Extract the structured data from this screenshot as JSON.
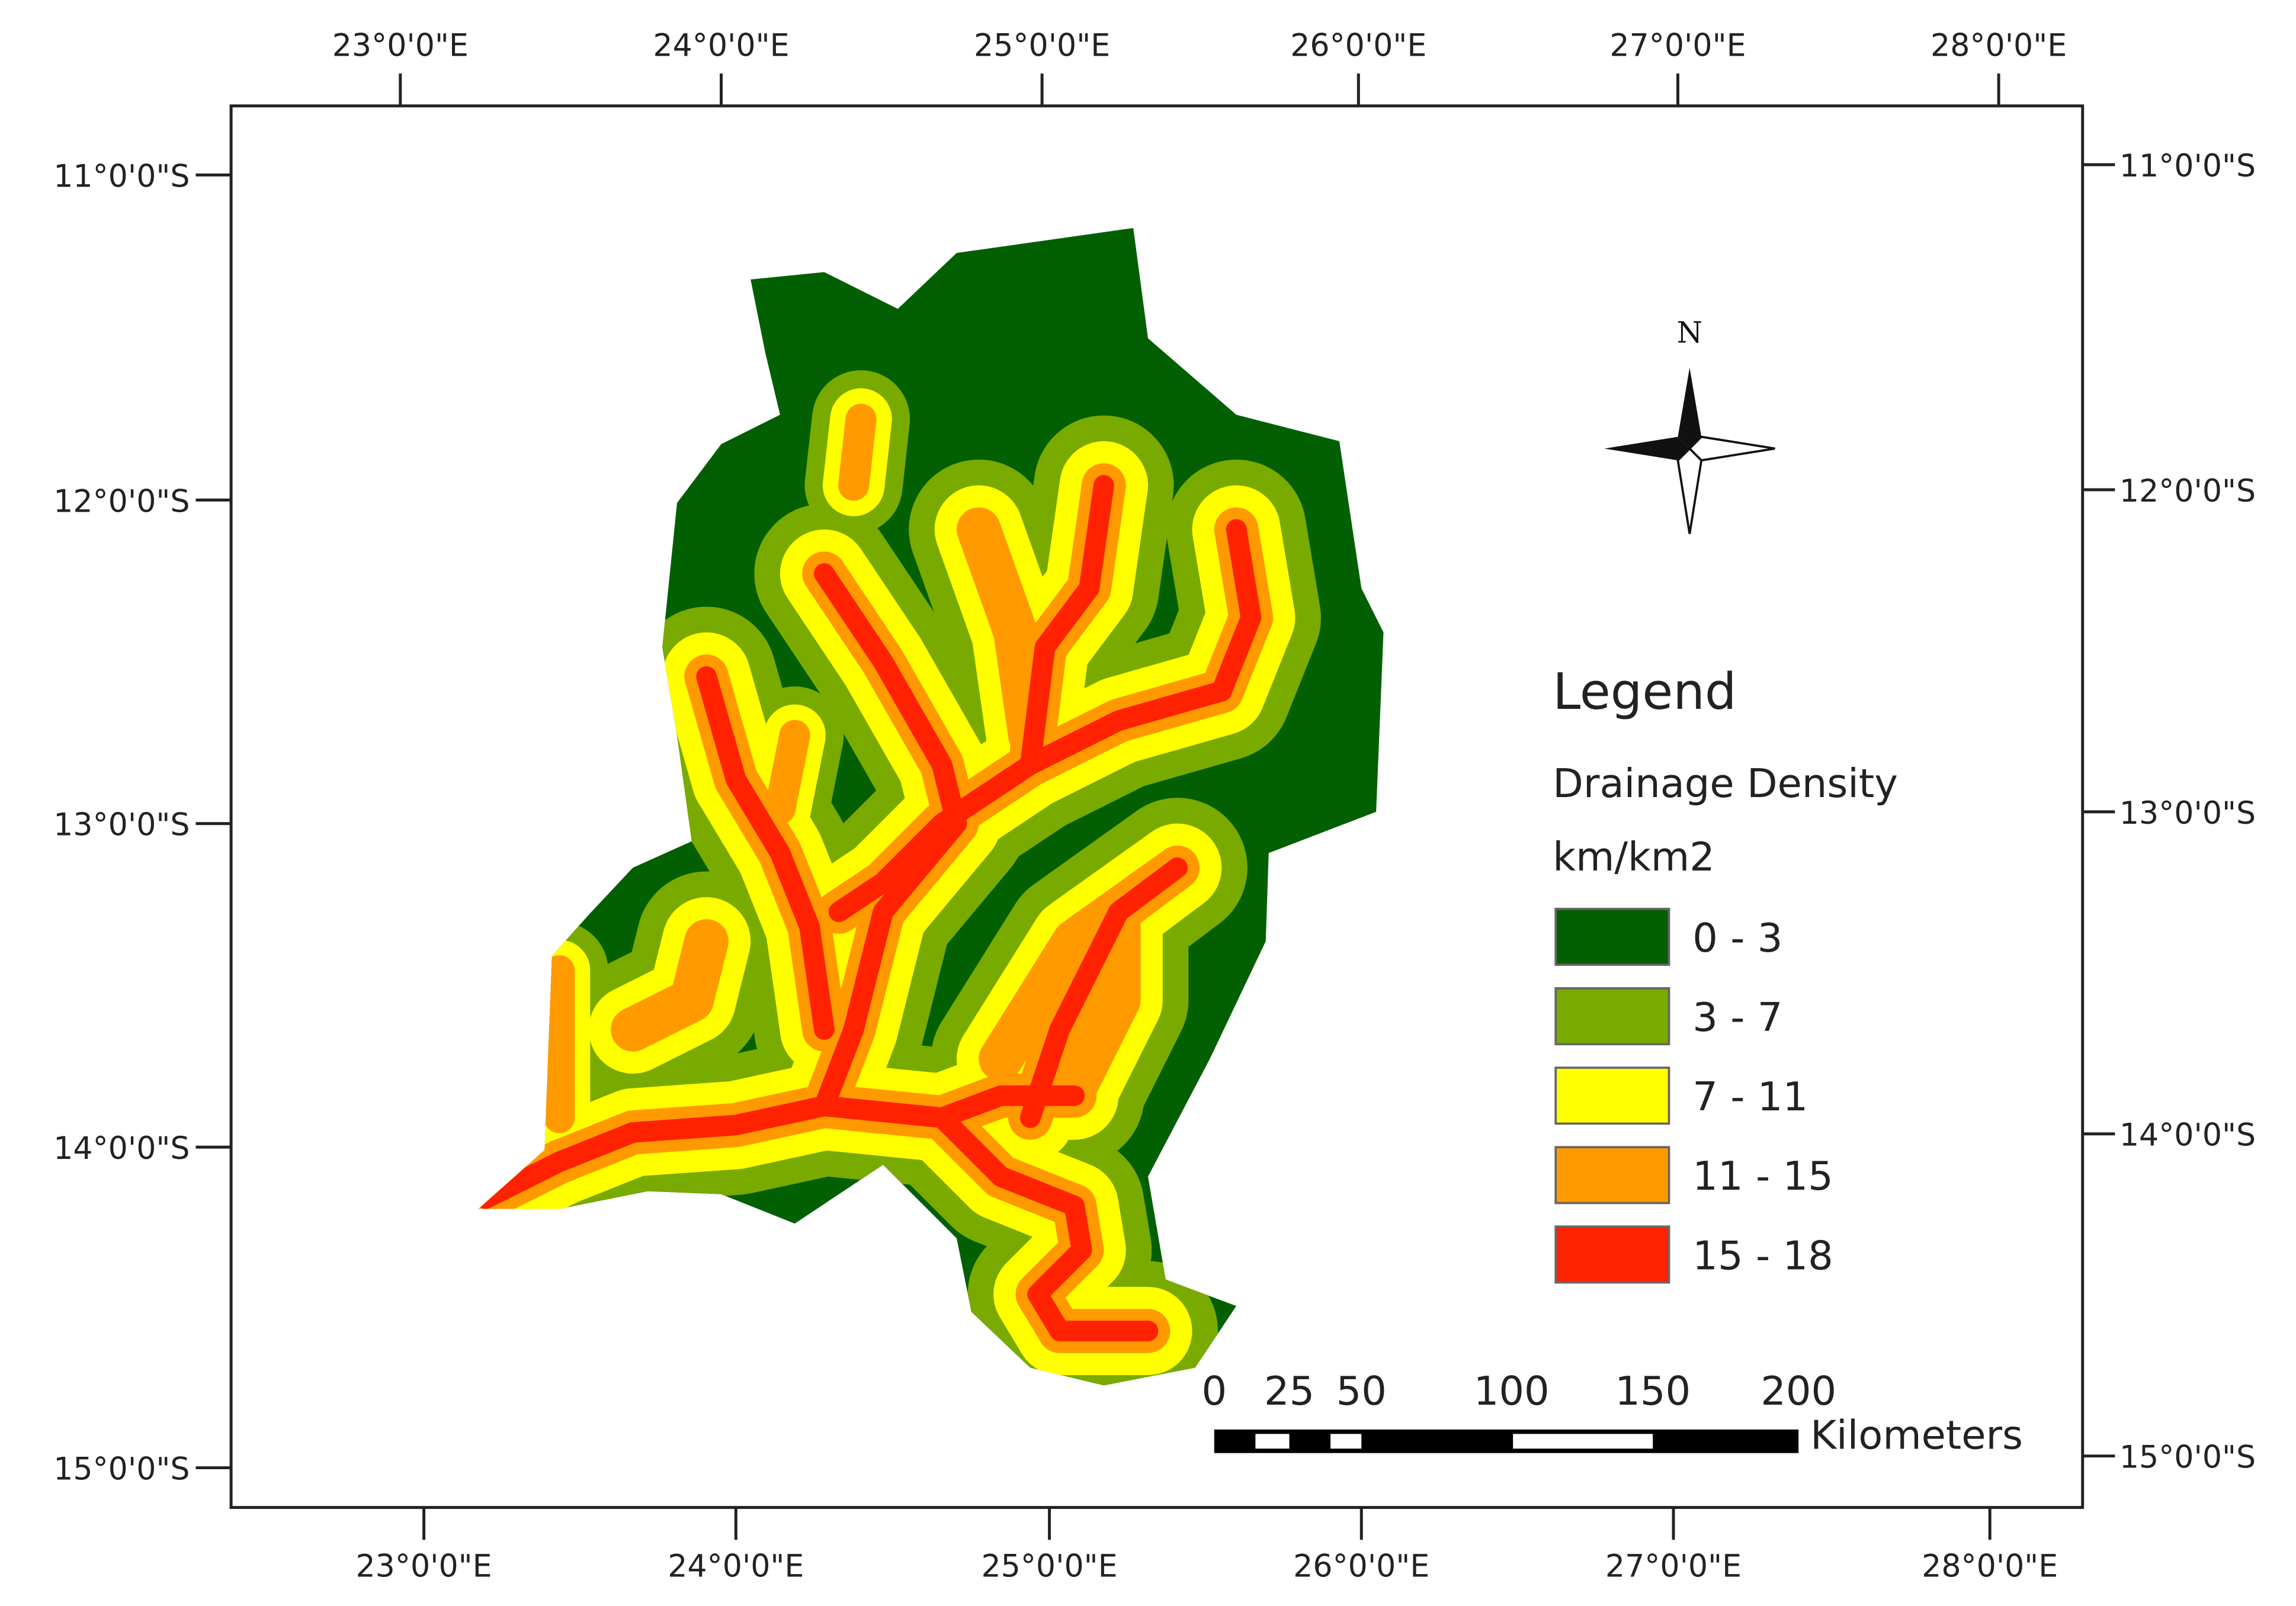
{
  "map": {
    "top_longitudes": [
      "23°0'0\"E",
      "24°0'0\"E",
      "25°0'0\"E",
      "26°0'0\"E",
      "27°0'0\"E",
      "28°0'0\"E"
    ],
    "bottom_longitudes": [
      "23°0'0\"E",
      "24°0'0\"E",
      "25°0'0\"E",
      "26°0'0\"E",
      "27°0'0\"E",
      "28°0'0\"E"
    ],
    "left_latitudes": [
      "11°0'0\"S",
      "12°0'0\"S",
      "13°0'0\"S",
      "14°0'0\"S",
      "15°0'0\"S"
    ],
    "right_latitudes": [
      "11°0'0\"S",
      "12°0'0\"S",
      "13°0'0\"S",
      "14°0'0\"S",
      "15°0'0\"S"
    ],
    "north_arrow": "N",
    "legend": {
      "title": "Legend",
      "layer": "Drainage Density",
      "unit": "km/km2",
      "classes": [
        {
          "label": "0 - 3",
          "color": "#026002"
        },
        {
          "label": "3 - 7",
          "color": "#79aa00"
        },
        {
          "label": "7 - 11",
          "color": "#ffff00"
        },
        {
          "label": "11 - 15",
          "color": "#ff9900"
        },
        {
          "label": "15 - 18",
          "color": "#ff2200"
        }
      ]
    },
    "scale_bar": {
      "labels": [
        "0",
        "25",
        "50",
        "100",
        "150",
        "200"
      ],
      "unit": "Kilometers"
    }
  }
}
